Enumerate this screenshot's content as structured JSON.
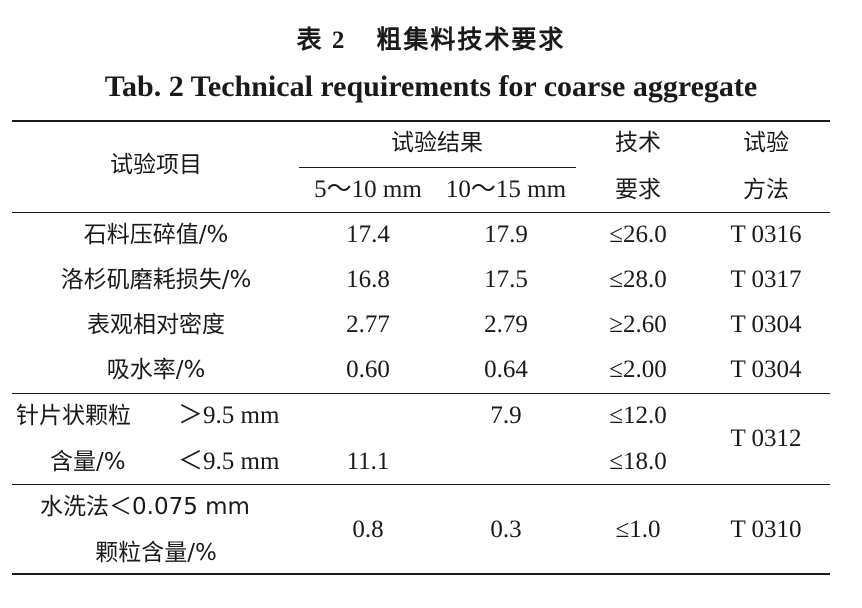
{
  "caption": {
    "cn_num": "表 2",
    "cn_text": "粗集料技术要求",
    "en": "Tab. 2 Technical requirements for coarse aggregate"
  },
  "header": {
    "item": "试验项目",
    "result": "试验结果",
    "size1": "5～10 mm",
    "size2": "10～15 mm",
    "tech_1": "技术",
    "tech_2": "要求",
    "method_1": "试验",
    "method_2": "方法"
  },
  "rows": [
    {
      "item": "石料压碎值/%",
      "v1": "17.4",
      "v2": "17.9",
      "req": "≤26.0",
      "method": "T 0316"
    },
    {
      "item": "洛杉矶磨耗损失/%",
      "v1": "16.8",
      "v2": "17.5",
      "req": "≤28.0",
      "method": "T 0317"
    },
    {
      "item": "表观相对密度",
      "v1": "2.77",
      "v2": "2.79",
      "req": "≥2.60",
      "method": "T 0304"
    },
    {
      "item": "吸水率/%",
      "v1": "0.60",
      "v2": "0.64",
      "req": "≤2.00",
      "method": "T 0304"
    }
  ],
  "flaky": {
    "item_a": "针片状颗粒",
    "item_b": "含量/%",
    "sub_a": "＞9.5 mm",
    "sub_b": "＜9.5 mm",
    "a_v2": "7.9",
    "b_v1": "11.1",
    "req_a": "≤12.0",
    "req_b": "≤18.0",
    "method": "T 0312"
  },
  "washing": {
    "item_a": "水洗法＜0.075 mm",
    "item_b": "颗粒含量/%",
    "v1": "0.8",
    "v2": "0.3",
    "req": "≤1.0",
    "method": "T 0310"
  }
}
